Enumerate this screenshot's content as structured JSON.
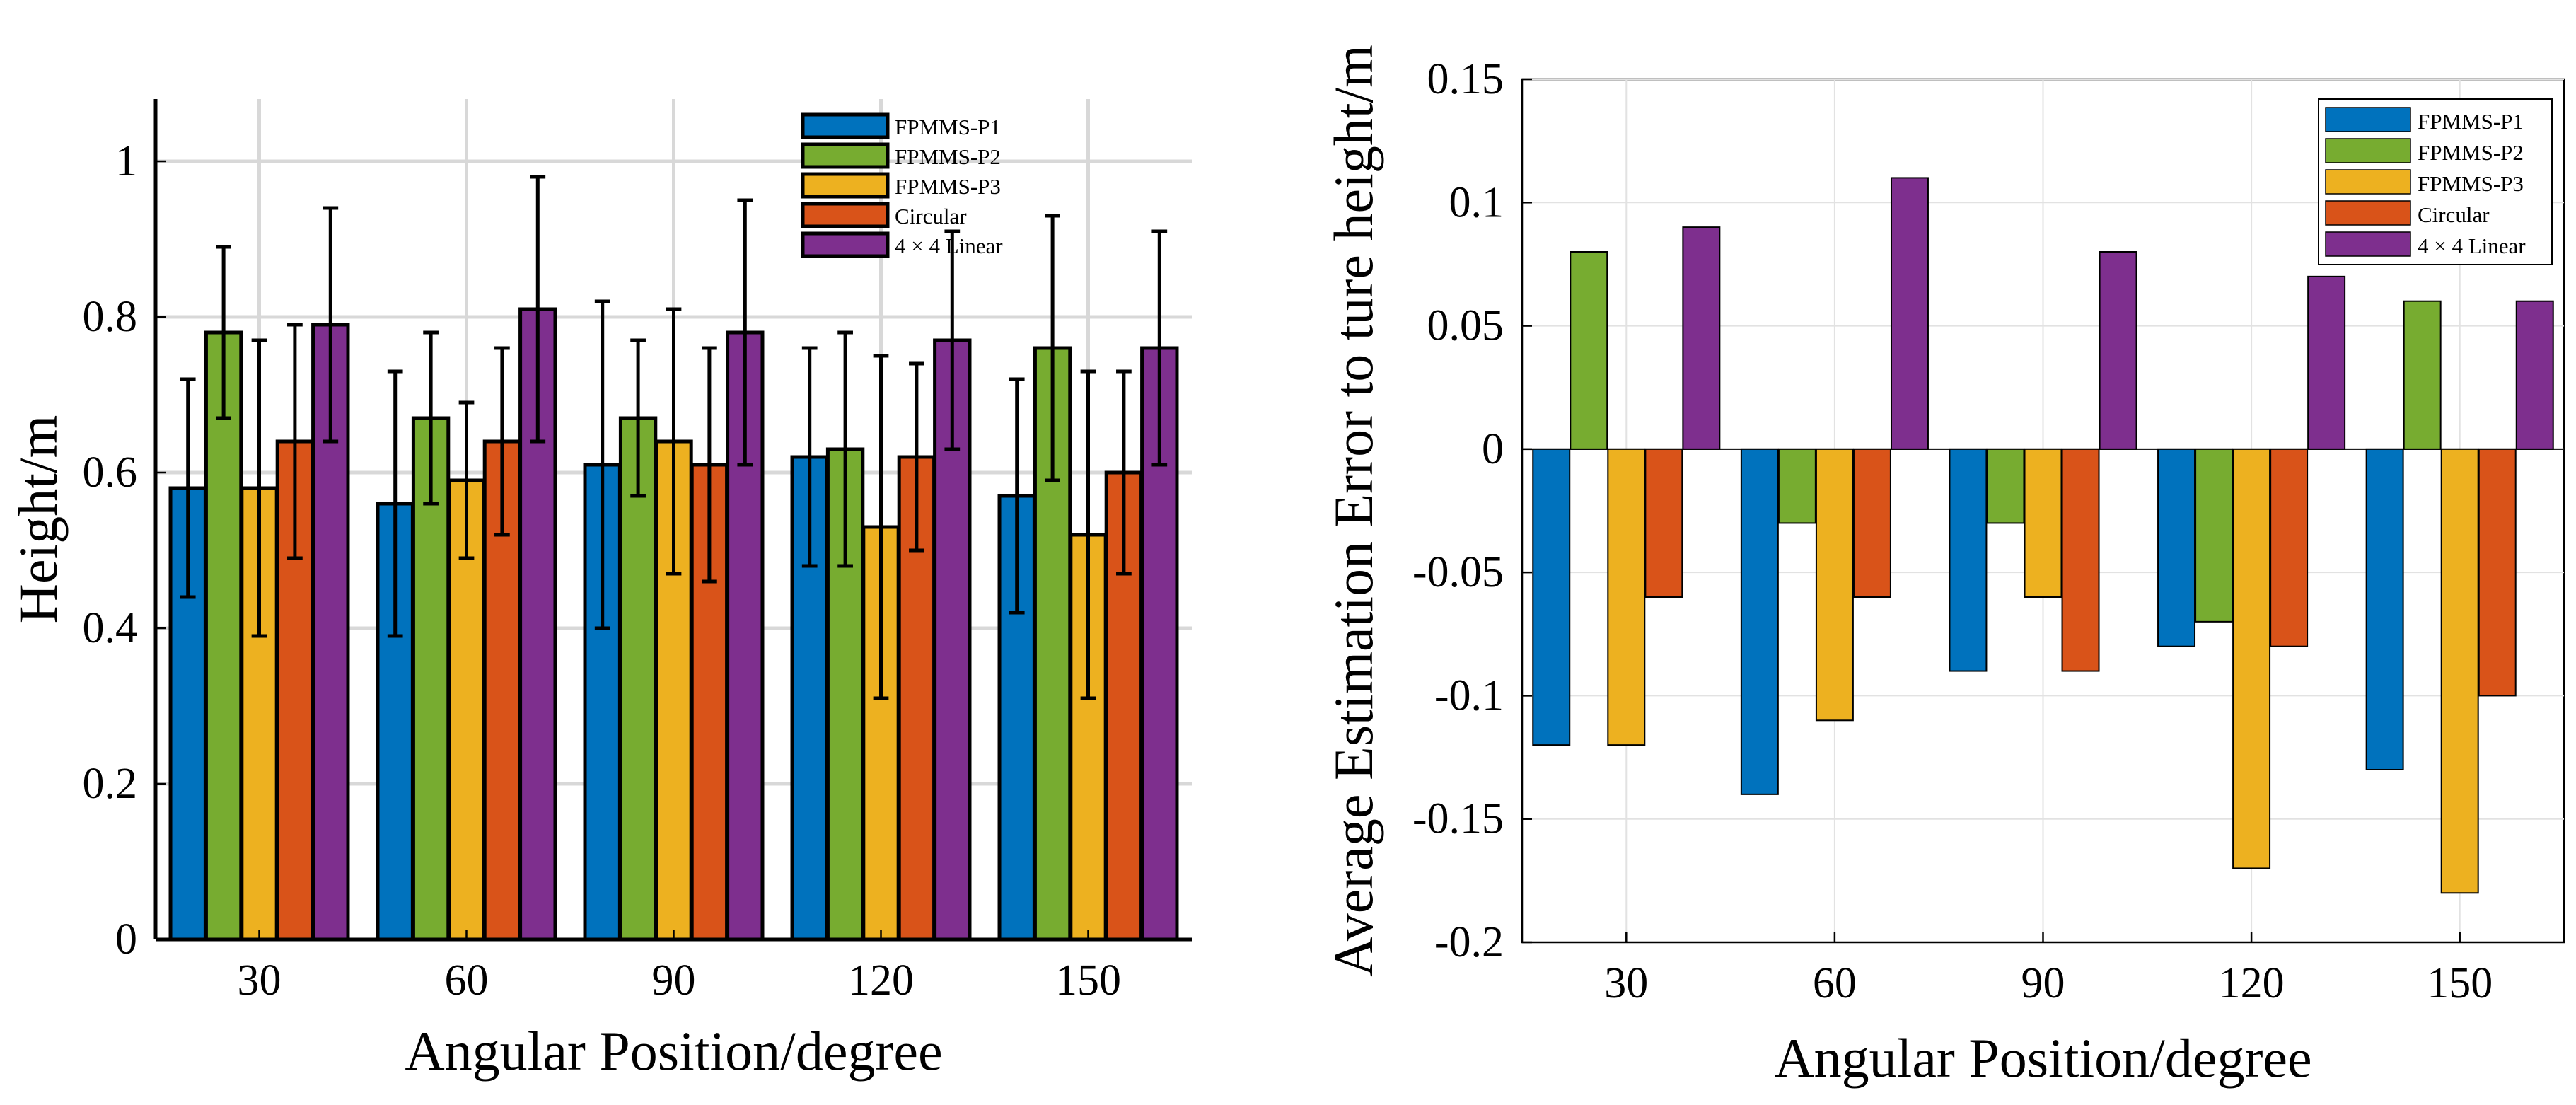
{
  "chart_data": [
    {
      "type": "bar",
      "error_bars": true,
      "categories": [
        "30",
        "60",
        "90",
        "120",
        "150"
      ],
      "xlabel": "Angular Position/degree",
      "ylabel": "Height/m",
      "ylim": [
        0,
        1.08
      ],
      "yticks": [
        "0",
        "0.2",
        "0.4",
        "0.6",
        "0.8",
        "1"
      ],
      "grid": true,
      "legend_position": "top-right",
      "series": [
        {
          "name": "FPMMS-P1",
          "color": "#0072BD",
          "values": [
            0.58,
            0.56,
            0.61,
            0.62,
            0.57
          ],
          "err_low": [
            0.44,
            0.39,
            0.4,
            0.48,
            0.42
          ],
          "err_high": [
            0.72,
            0.73,
            0.82,
            0.76,
            0.72
          ]
        },
        {
          "name": "FPMMS-P2",
          "color": "#77AC30",
          "values": [
            0.78,
            0.67,
            0.67,
            0.63,
            0.76
          ],
          "err_low": [
            0.67,
            0.56,
            0.57,
            0.48,
            0.59
          ],
          "err_high": [
            0.89,
            0.78,
            0.77,
            0.78,
            0.93
          ]
        },
        {
          "name": "FPMMS-P3",
          "color": "#EDB120",
          "values": [
            0.58,
            0.59,
            0.64,
            0.53,
            0.52
          ],
          "err_low": [
            0.39,
            0.49,
            0.47,
            0.31,
            0.31
          ],
          "err_high": [
            0.77,
            0.69,
            0.81,
            0.75,
            0.73
          ]
        },
        {
          "name": "Circular",
          "color": "#D95319",
          "values": [
            0.64,
            0.64,
            0.61,
            0.62,
            0.6
          ],
          "err_low": [
            0.49,
            0.52,
            0.46,
            0.5,
            0.47
          ],
          "err_high": [
            0.79,
            0.76,
            0.76,
            0.74,
            0.73
          ]
        },
        {
          "name": "4 × 4 Linear",
          "color": "#7E2F8E",
          "values": [
            0.79,
            0.81,
            0.78,
            0.77,
            0.76
          ],
          "err_low": [
            0.64,
            0.64,
            0.61,
            0.63,
            0.61
          ],
          "err_high": [
            0.94,
            0.98,
            0.95,
            0.91,
            0.91
          ]
        }
      ]
    },
    {
      "type": "bar",
      "categories": [
        "30",
        "60",
        "90",
        "120",
        "150"
      ],
      "xlabel": "Angular Position/degree",
      "ylabel": "Average Estimation Error to ture height/m",
      "ylim": [
        -0.2,
        0.15
      ],
      "yticks": [
        "-0.2",
        "-0.15",
        "-0.1",
        "-0.05",
        "0",
        "0.05",
        "0.1",
        "0.15"
      ],
      "grid": true,
      "legend_position": "top-right",
      "series": [
        {
          "name": "FPMMS-P1",
          "color": "#0072BD",
          "values": [
            -0.12,
            -0.14,
            -0.09,
            -0.08,
            -0.13
          ]
        },
        {
          "name": "FPMMS-P2",
          "color": "#77AC30",
          "values": [
            0.08,
            -0.03,
            -0.03,
            -0.07,
            0.06
          ]
        },
        {
          "name": "FPMMS-P3",
          "color": "#EDB120",
          "values": [
            -0.12,
            -0.11,
            -0.06,
            -0.17,
            -0.18
          ]
        },
        {
          "name": "Circular",
          "color": "#D95319",
          "values": [
            -0.06,
            -0.06,
            -0.09,
            -0.08,
            -0.1
          ]
        },
        {
          "name": "4 × 4 Linear",
          "color": "#7E2F8E",
          "values": [
            0.09,
            0.11,
            0.08,
            0.07,
            0.06
          ]
        }
      ]
    }
  ]
}
